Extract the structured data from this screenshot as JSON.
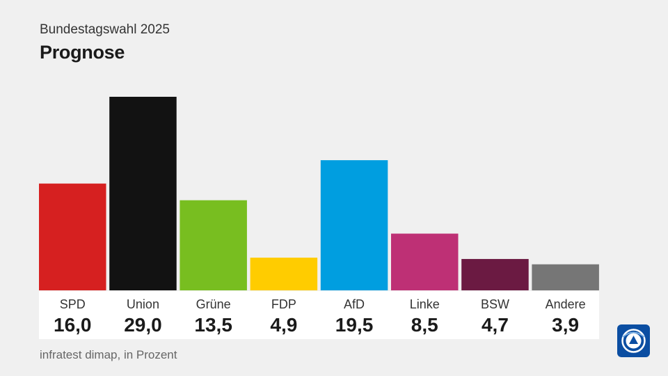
{
  "header": {
    "subtitle": "Bundestagswahl 2025",
    "title": "Prognose"
  },
  "footer": {
    "source": "infratest dimap, in Prozent"
  },
  "logo": {
    "icon": "ard-logo-icon",
    "color": "#0b4ea2"
  },
  "chart_data": {
    "type": "bar",
    "title": "Prognose",
    "subtitle": "Bundestagswahl 2025",
    "categories": [
      "SPD",
      "Union",
      "Grüne",
      "FDP",
      "AfD",
      "Linke",
      "BSW",
      "Andere"
    ],
    "values": [
      16.0,
      29.0,
      13.5,
      4.9,
      19.5,
      8.5,
      4.7,
      3.9
    ],
    "value_labels": [
      "16,0",
      "29,0",
      "13,5",
      "4,9",
      "19,5",
      "8,5",
      "4,7",
      "3,9"
    ],
    "colors": [
      "#d62020",
      "#121212",
      "#78be20",
      "#ffcc00",
      "#009ee0",
      "#be3075",
      "#6b1a42",
      "#767676"
    ],
    "xlabel": "",
    "ylabel": "",
    "ylim": [
      0,
      29.0
    ],
    "grid": false,
    "legend": "none"
  }
}
